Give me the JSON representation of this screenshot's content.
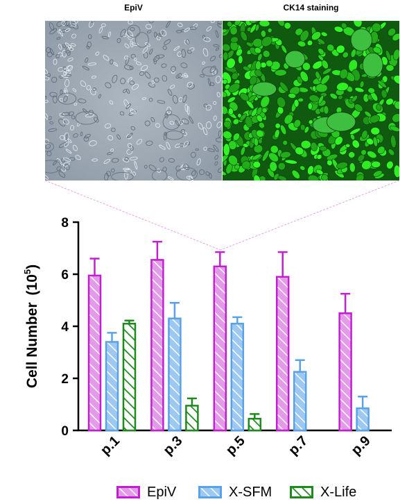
{
  "panels": {
    "left_title": "EpiV",
    "right_title": "CK14 staining"
  },
  "colors": {
    "EpiV": "#c21fd1",
    "EpiV_fill": "#e39ae8",
    "X-SFM": "#5aa2e8",
    "X-SFM_fill": "#9cc8f2",
    "X-Life": "#1e8a1e",
    "X-Life_fill": "#ffffff"
  },
  "chart_data": {
    "type": "bar",
    "categories": [
      "p.1",
      "p.3",
      "p.5",
      "p.7",
      "p.9"
    ],
    "ylabel_main": "Cell Number",
    "ylabel_unit_base": "(10",
    "ylabel_unit_exp": "5",
    "ylabel_unit_close": ")",
    "ylim": [
      0,
      8
    ],
    "yticks": [
      "0",
      "2",
      "4",
      "6",
      "8"
    ],
    "series": [
      {
        "name": "EpiV",
        "values": [
          5.95,
          6.55,
          6.3,
          5.9,
          4.5
        ],
        "errors": [
          0.65,
          0.7,
          0.55,
          0.95,
          0.75
        ]
      },
      {
        "name": "X-SFM",
        "values": [
          3.4,
          4.3,
          4.1,
          2.25,
          0.85
        ],
        "errors": [
          0.35,
          0.6,
          0.25,
          0.45,
          0.45
        ]
      },
      {
        "name": "X-Life",
        "values": [
          4.1,
          0.95,
          0.45,
          null,
          null
        ],
        "errors": [
          0.12,
          0.28,
          0.18,
          null,
          null
        ]
      }
    ],
    "legend_position": "bottom",
    "grid": false
  }
}
